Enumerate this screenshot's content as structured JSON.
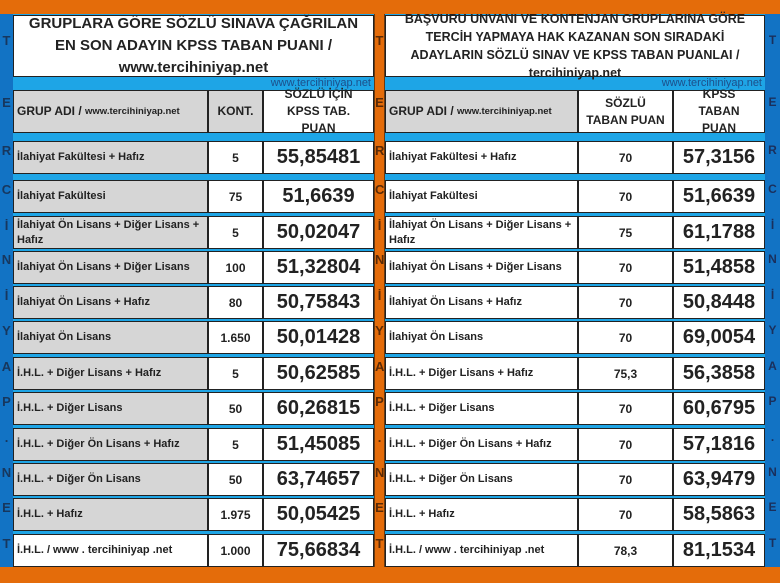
{
  "side_letters": [
    "T",
    "E",
    "R",
    "C",
    "İ",
    "N",
    "İ",
    "Y",
    "A",
    "P",
    ".",
    "N",
    "E",
    "T"
  ],
  "left_table": {
    "title": "GRUPLARA GÖRE SÖZLÜ SINAVA ÇAĞRILAN EN SON ADAYIN KPSS TABAN PUANI / www.tercihiniyap.net",
    "url": "www.tercihiniyap.net",
    "headers": {
      "group_main": "GRUP ADI /",
      "group_sub": "www.tercihiniyap.net",
      "quota": "KONT.",
      "score": "SÖZLÜ İÇİN KPSS TAB. PUAN"
    },
    "rows": [
      {
        "group": "İlahiyat Fakültesi + Hafız",
        "quota": "5",
        "score": "55,85481"
      },
      {
        "group": "İlahiyat Fakültesi",
        "quota": "75",
        "score": "51,6639"
      },
      {
        "group": "İlahiyat Ön Lisans + Diğer Lisans + Hafız",
        "quota": "5",
        "score": "50,02047"
      },
      {
        "group": "İlahiyat Ön Lisans + Diğer Lisans",
        "quota": "100",
        "score": "51,32804"
      },
      {
        "group": "İlahiyat Ön Lisans + Hafız",
        "quota": "80",
        "score": "50,75843"
      },
      {
        "group": "İlahiyat Ön Lisans",
        "quota": "1.650",
        "score": "50,01428"
      },
      {
        "group": "İ.H.L. + Diğer Lisans + Hafız",
        "quota": "5",
        "score": "50,62585"
      },
      {
        "group": "İ.H.L. + Diğer Lisans",
        "quota": "50",
        "score": "60,26815"
      },
      {
        "group": "İ.H.L. + Diğer Ön Lisans + Hafız",
        "quota": "5",
        "score": "51,45085"
      },
      {
        "group": "İ.H.L. + Diğer Ön Lisans",
        "quota": "50",
        "score": "63,74657"
      },
      {
        "group": "İ.H.L. + Hafız",
        "quota": "1.975",
        "score": "50,05425"
      },
      {
        "group": "İ.H.L. / www . tercihiniyap .net",
        "quota": "1.000",
        "score": "75,66834"
      }
    ]
  },
  "right_table": {
    "title": "BAŞVURU UNVANI VE KONTENJAN GRUPLARINA GÖRE TERCİH YAPMAYA HAK KAZANAN SON SIRADAKİ ADAYLARIN SÖZLÜ SINAV VE KPSS TABAN PUANLAI / tercihiniyap.net",
    "url": "www.tercihiniyap.net",
    "headers": {
      "group_main": "GRUP ADI /",
      "group_sub": "www.tercihiniyap.net",
      "oral": "SÖZLÜ TABAN PUAN",
      "kpss": "KPSS TABAN PUAN"
    },
    "rows": [
      {
        "group": "İlahiyat Fakültesi + Hafız",
        "oral": "70",
        "kpss": "57,3156"
      },
      {
        "group": "İlahiyat Fakültesi",
        "oral": "70",
        "kpss": "51,6639"
      },
      {
        "group": "İlahiyat Ön Lisans + Diğer Lisans + Hafız",
        "oral": "75",
        "kpss": "61,1788"
      },
      {
        "group": "İlahiyat Ön Lisans + Diğer Lisans",
        "oral": "70",
        "kpss": "51,4858"
      },
      {
        "group": "İlahiyat Ön Lisans + Hafız",
        "oral": "70",
        "kpss": "50,8448"
      },
      {
        "group": "İlahiyat Ön Lisans",
        "oral": "70",
        "kpss": "69,0054"
      },
      {
        "group": "İ.H.L. + Diğer Lisans + Hafız",
        "oral": "75,3",
        "kpss": "56,3858"
      },
      {
        "group": "İ.H.L. + Diğer Lisans",
        "oral": "70",
        "kpss": "60,6795"
      },
      {
        "group": "İ.H.L. + Diğer Ön Lisans + Hafız",
        "oral": "70",
        "kpss": "57,1816"
      },
      {
        "group": "İ.H.L. + Diğer Ön Lisans",
        "oral": "70",
        "kpss": "63,9479"
      },
      {
        "group": "İ.H.L. + Hafız",
        "oral": "70",
        "kpss": "58,5863"
      },
      {
        "group": "İ.H.L. / www . tercihiniyap .net",
        "oral": "78,3",
        "kpss": "81,1534"
      }
    ]
  },
  "colors": {
    "orange": "#e46c0a",
    "blue_strip": "#1273c4",
    "light_blue": "#1ea5e6",
    "gray_cell": "#d6d6d6"
  }
}
